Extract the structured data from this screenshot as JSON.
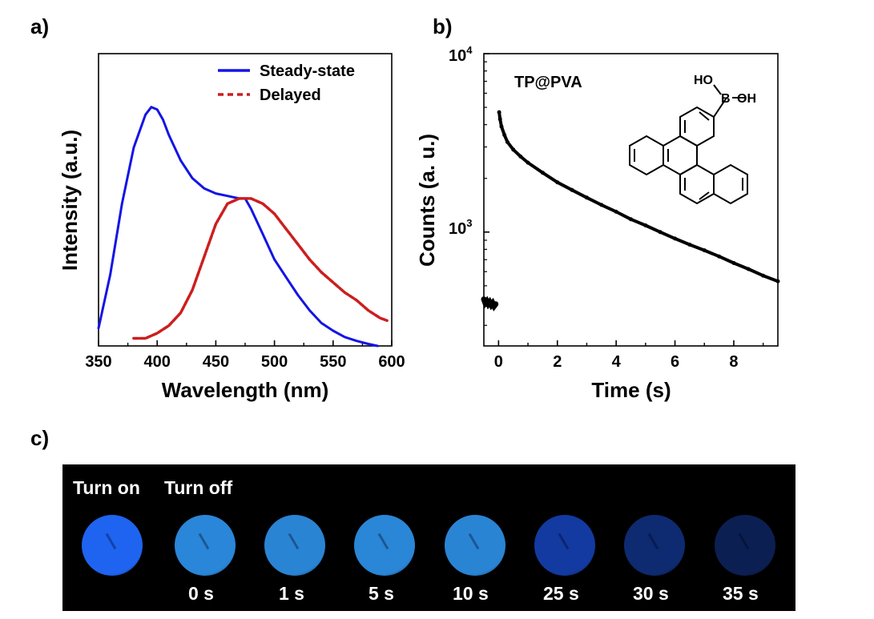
{
  "panel_labels": {
    "a": "a)",
    "b": "b)",
    "c": "c)"
  },
  "chart_data": [
    {
      "type": "line",
      "xlabel": "Wavelength (nm)",
      "ylabel": "Intensity (a.u.)",
      "xlim": [
        350,
        600
      ],
      "ylim": [
        0,
        1.15
      ],
      "xticks": [
        350,
        400,
        450,
        500,
        550,
        600
      ],
      "yticks_shown": false,
      "legend_position": "top-right",
      "series": [
        {
          "name": "Steady-state",
          "color": "#1414e6",
          "style": "solid",
          "x": [
            350,
            360,
            370,
            380,
            390,
            395,
            400,
            405,
            410,
            420,
            430,
            440,
            450,
            460,
            470,
            475,
            480,
            490,
            500,
            510,
            520,
            530,
            540,
            550,
            560,
            570,
            580,
            588
          ],
          "y": [
            0.07,
            0.28,
            0.56,
            0.78,
            0.91,
            0.94,
            0.93,
            0.89,
            0.83,
            0.73,
            0.66,
            0.62,
            0.6,
            0.59,
            0.58,
            0.58,
            0.54,
            0.44,
            0.34,
            0.27,
            0.2,
            0.14,
            0.09,
            0.06,
            0.035,
            0.02,
            0.008,
            0.0
          ]
        },
        {
          "name": "Delayed",
          "color": "#cc1e1e",
          "style": "dashed",
          "x": [
            380,
            390,
            400,
            410,
            420,
            430,
            440,
            450,
            460,
            470,
            475,
            480,
            490,
            500,
            510,
            520,
            530,
            540,
            550,
            560,
            570,
            580,
            590,
            596
          ],
          "y": [
            0.03,
            0.03,
            0.05,
            0.08,
            0.13,
            0.22,
            0.35,
            0.48,
            0.56,
            0.58,
            0.58,
            0.58,
            0.56,
            0.52,
            0.46,
            0.4,
            0.34,
            0.29,
            0.25,
            0.21,
            0.18,
            0.14,
            0.11,
            0.1
          ]
        }
      ]
    },
    {
      "type": "scatter",
      "title": "TP@PVA",
      "xlabel": "Time (s)",
      "ylabel": "Counts (a. u.)",
      "xlim": [
        -0.5,
        9.5
      ],
      "ylim": [
        230,
        10000
      ],
      "yscale": "log",
      "xticks": [
        0,
        2,
        4,
        6,
        8
      ],
      "ytick_labels": [
        "10^3",
        "10^4"
      ],
      "color": "#000000",
      "series": [
        {
          "name": "",
          "x": [
            -0.5,
            -0.45,
            -0.4,
            -0.35,
            -0.3,
            -0.25,
            -0.2,
            -0.15,
            -0.1,
            0.02,
            0.05,
            0.1,
            0.2,
            0.3,
            0.5,
            0.75,
            1.0,
            1.5,
            2.0,
            2.5,
            3.0,
            3.5,
            4.0,
            4.5,
            5.0,
            5.5,
            6.0,
            6.5,
            7.0,
            7.5,
            8.0,
            8.5,
            9.0,
            9.5
          ],
          "y": [
            420,
            400,
            410,
            395,
            405,
            390,
            400,
            385,
            395,
            4700,
            4300,
            3900,
            3500,
            3200,
            2900,
            2650,
            2450,
            2150,
            1900,
            1720,
            1560,
            1420,
            1300,
            1180,
            1090,
            1000,
            920,
            850,
            790,
            730,
            670,
            620,
            570,
            530
          ]
        }
      ]
    }
  ],
  "chart_a": {
    "tick_labels": [
      "350",
      "400",
      "450",
      "500",
      "550",
      "600"
    ],
    "legend": [
      "Steady-state",
      "Delayed"
    ]
  },
  "chart_b": {
    "tick_labels": [
      "0",
      "2",
      "4",
      "6",
      "8"
    ],
    "ytick_base": "10",
    "ytick_exp_top": "4",
    "ytick_exp_bottom": "3",
    "molecule_labels": {
      "ho_top": "HO",
      "b": "B",
      "oh": "OH"
    }
  },
  "photo_strip": {
    "labels": {
      "on": "Turn on",
      "off": "Turn off"
    },
    "times": [
      "0 s",
      "1 s",
      "5 s",
      "10 s",
      "25 s",
      "30 s",
      "35 s"
    ],
    "disc_colors": [
      "#1e64f0",
      "#2a86d8",
      "#2a84d4",
      "#2a86d6",
      "#2a84d4",
      "#123aa0",
      "#0e2a70",
      "#0c1f52"
    ]
  }
}
